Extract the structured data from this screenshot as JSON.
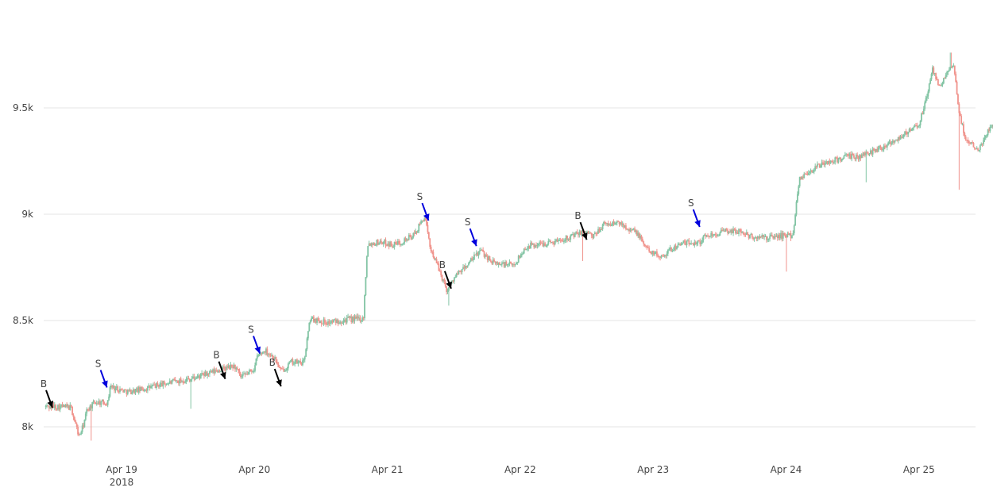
{
  "chart_data": {
    "type": "candlestick",
    "title": "",
    "xlabel": "",
    "ylabel": "",
    "xlim": [
      0,
      6.45
    ],
    "ylim": [
      7930,
      9770
    ],
    "x_ticks": [
      {
        "x": 1,
        "label": "Apr 19",
        "sublabel": "2018"
      },
      {
        "x": 2,
        "label": "Apr 20",
        "sublabel": ""
      },
      {
        "x": 3,
        "label": "Apr 21",
        "sublabel": ""
      },
      {
        "x": 4,
        "label": "Apr 22",
        "sublabel": ""
      },
      {
        "x": 5,
        "label": "Apr 23",
        "sublabel": ""
      },
      {
        "x": 6,
        "label": "Apr 24",
        "sublabel": ""
      },
      {
        "x": 7,
        "label": "Apr 25",
        "sublabel": ""
      }
    ],
    "y_ticks": [
      {
        "y": 8000,
        "label": "8k"
      },
      {
        "y": 8500,
        "label": "8.5k"
      },
      {
        "y": 9000,
        "label": "9k"
      },
      {
        "y": 9500,
        "label": "9.5k"
      }
    ],
    "start_day": -0.57,
    "candle_step_days": 0.00833,
    "colors": {
      "increasing": "#82c4a4",
      "decreasing": "#f0938c",
      "grid": "#e6e6e6",
      "buy_arrow": "#000000",
      "sell_arrow": "#0000dd"
    },
    "path": [
      [
        -0.57,
        8095
      ],
      [
        -0.45,
        8095
      ],
      [
        -0.38,
        8090
      ],
      [
        -0.32,
        7955
      ],
      [
        -0.29,
        8000
      ],
      [
        -0.26,
        8080
      ],
      [
        -0.2,
        8115
      ],
      [
        -0.1,
        8115
      ],
      [
        -0.09,
        8190
      ],
      [
        0.05,
        8165
      ],
      [
        0.15,
        8175
      ],
      [
        0.3,
        8200
      ],
      [
        0.55,
        8230
      ],
      [
        0.75,
        8270
      ],
      [
        0.85,
        8285
      ],
      [
        0.9,
        8230
      ],
      [
        1.0,
        8275
      ],
      [
        1.02,
        8330
      ],
      [
        1.08,
        8360
      ],
      [
        1.15,
        8325
      ],
      [
        1.2,
        8260
      ],
      [
        1.28,
        8305
      ],
      [
        1.37,
        8300
      ],
      [
        1.42,
        8510
      ],
      [
        1.55,
        8490
      ],
      [
        1.7,
        8505
      ],
      [
        1.82,
        8510
      ],
      [
        1.85,
        8860
      ],
      [
        1.95,
        8870
      ],
      [
        2.05,
        8855
      ],
      [
        2.2,
        8900
      ],
      [
        2.28,
        8990
      ],
      [
        2.32,
        8850
      ],
      [
        2.4,
        8720
      ],
      [
        2.45,
        8640
      ],
      [
        2.5,
        8700
      ],
      [
        2.6,
        8760
      ],
      [
        2.7,
        8830
      ],
      [
        2.8,
        8770
      ],
      [
        2.95,
        8760
      ],
      [
        3.05,
        8850
      ],
      [
        3.25,
        8870
      ],
      [
        3.4,
        8900
      ],
      [
        3.5,
        8920
      ],
      [
        3.55,
        8890
      ],
      [
        3.62,
        8950
      ],
      [
        3.75,
        8960
      ],
      [
        3.88,
        8910
      ],
      [
        3.95,
        8840
      ],
      [
        4.05,
        8800
      ],
      [
        4.2,
        8860
      ],
      [
        4.35,
        8870
      ],
      [
        4.4,
        8900
      ],
      [
        4.55,
        8920
      ],
      [
        4.65,
        8920
      ],
      [
        4.75,
        8890
      ],
      [
        4.88,
        8890
      ],
      [
        4.98,
        8900
      ],
      [
        5.05,
        8900
      ],
      [
        5.1,
        9170
      ],
      [
        5.25,
        9230
      ],
      [
        5.45,
        9270
      ],
      [
        5.55,
        9270
      ],
      [
        5.7,
        9310
      ],
      [
        5.85,
        9360
      ],
      [
        6.0,
        9420
      ],
      [
        6.05,
        9530
      ],
      [
        6.1,
        9680
      ],
      [
        6.15,
        9600
      ],
      [
        6.2,
        9650
      ],
      [
        6.26,
        9700
      ],
      [
        6.3,
        9490
      ],
      [
        6.35,
        9350
      ],
      [
        6.45,
        9310
      ],
      [
        6.55,
        9420
      ],
      [
        6.65,
        9380
      ],
      [
        6.8,
        9240
      ]
    ],
    "spikes": [
      {
        "x": -0.23,
        "low": 7935
      },
      {
        "x": 0.52,
        "low": 8085
      },
      {
        "x": 2.46,
        "low": 8570
      },
      {
        "x": 3.47,
        "low": 8780
      },
      {
        "x": 5.0,
        "low": 8730
      },
      {
        "x": 6.3,
        "low": 9115
      },
      {
        "x": 5.6,
        "low": 9150
      },
      {
        "x": 6.24,
        "high": 9760
      }
    ],
    "annotations": [
      {
        "text": "B",
        "type": "buy",
        "x": -0.52,
        "y": 8090
      },
      {
        "text": "S",
        "type": "sell",
        "x": -0.11,
        "y": 8185
      },
      {
        "text": "B",
        "type": "buy",
        "x": 0.78,
        "y": 8225
      },
      {
        "text": "S",
        "type": "sell",
        "x": 1.04,
        "y": 8345
      },
      {
        "text": "B",
        "type": "buy",
        "x": 1.2,
        "y": 8190
      },
      {
        "text": "S",
        "type": "sell",
        "x": 2.31,
        "y": 8970
      },
      {
        "text": "B",
        "type": "buy",
        "x": 2.48,
        "y": 8650
      },
      {
        "text": "S",
        "type": "sell",
        "x": 2.67,
        "y": 8850
      },
      {
        "text": "B",
        "type": "buy",
        "x": 3.5,
        "y": 8880
      },
      {
        "text": "S",
        "type": "sell",
        "x": 4.35,
        "y": 8940
      }
    ]
  }
}
